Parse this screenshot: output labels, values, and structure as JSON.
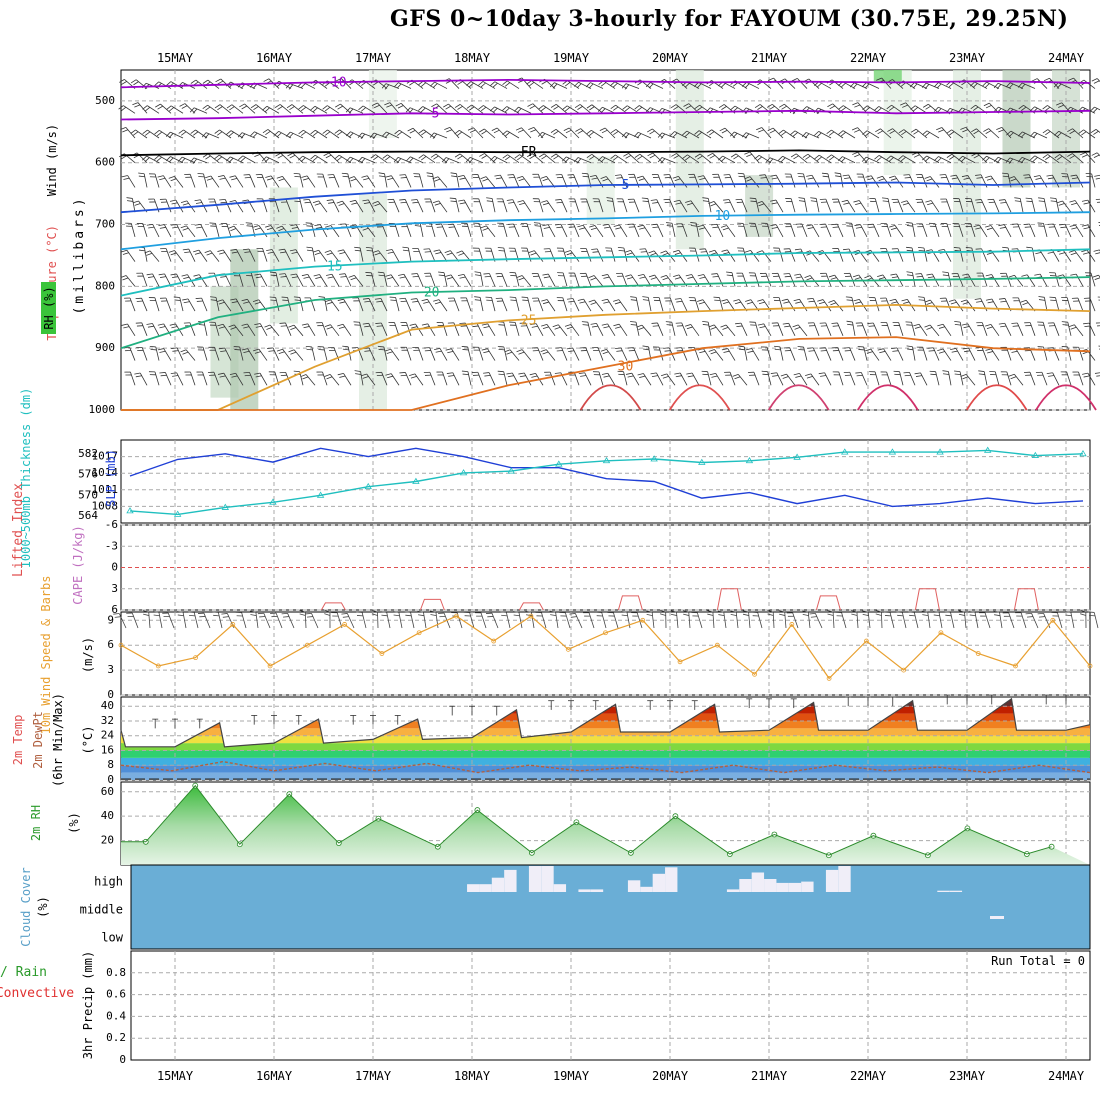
{
  "title": "GFS 0~10day 3-hourly for FAYOUM (30.75E, 29.25N)",
  "dates": [
    "15MAY",
    "16MAY",
    "17MAY",
    "18MAY",
    "19MAY",
    "20MAY",
    "21MAY",
    "22MAY",
    "23MAY",
    "24MAY"
  ],
  "chart_data": [
    {
      "type": "line",
      "panel": "upper-air",
      "ylabel_parts": [
        "Wind (m/s)",
        "Temperature (°C)",
        "RH (%)",
        "(millibars)"
      ],
      "y_ticks": [
        500,
        600,
        700,
        800,
        900,
        1000
      ],
      "ylim": [
        450,
        1000
      ],
      "contour_labels": [
        "-10",
        "-5",
        "FR",
        "5",
        "10",
        "15",
        "20",
        "25",
        "30"
      ],
      "series": [
        {
          "label": "-10",
          "p": [
            478,
            474,
            470,
            468,
            466,
            468,
            470,
            469,
            470,
            468,
            471
          ],
          "color": "#9900cc"
        },
        {
          "label": "-5",
          "p": [
            530,
            528,
            524,
            520,
            522,
            520,
            518,
            516,
            520,
            518,
            516
          ],
          "color": "#9900cc"
        },
        {
          "label": "FR",
          "p": [
            588,
            585,
            583,
            582,
            583,
            583,
            582,
            580,
            583,
            585,
            582
          ],
          "color": "#000000"
        },
        {
          "label": "5",
          "p": [
            680,
            668,
            655,
            645,
            640,
            636,
            635,
            634,
            632,
            636,
            632
          ],
          "color": "#1f4fd6"
        },
        {
          "label": "10",
          "p": [
            740,
            722,
            708,
            698,
            693,
            690,
            686,
            684,
            683,
            682,
            680
          ],
          "color": "#1f9fe0"
        },
        {
          "label": "15",
          "p": [
            815,
            782,
            768,
            760,
            756,
            753,
            750,
            746,
            745,
            744,
            740
          ],
          "color": "#1fbfbf"
        },
        {
          "label": "20",
          "p": [
            900,
            850,
            822,
            810,
            806,
            800,
            796,
            792,
            790,
            788,
            785
          ],
          "color": "#20b080"
        },
        {
          "label": "25",
          "p": [
            1000,
            1000,
            930,
            870,
            855,
            846,
            840,
            835,
            830,
            836,
            840
          ],
          "color": "#e0a030"
        },
        {
          "label": "30",
          "p": [
            1000,
            1000,
            1000,
            1000,
            960,
            930,
            900,
            885,
            882,
            900,
            905
          ],
          "color": "#e07020"
        }
      ]
    },
    {
      "type": "line",
      "panel": "slp-thickness",
      "ylabel_parts": [
        "SLP (mb)",
        "1000~500mb Thickness (dm)"
      ],
      "y_ticks_left": [
        564,
        570,
        576,
        582
      ],
      "y_ticks_right": [
        1008,
        1011,
        1014,
        1017
      ],
      "series": [
        {
          "name": "SLP",
          "unit": "mb",
          "values": [
            1013.5,
            1016.5,
            1017.5,
            1016.0,
            1018.5,
            1017.0,
            1018.5,
            1017.0,
            1015.0,
            1015.0,
            1013.0,
            1012.5,
            1009.5,
            1010.5,
            1008.5,
            1010.0,
            1008.0,
            1008.5,
            1009.5,
            1008.5,
            1009.0
          ]
        },
        {
          "name": "Thickness",
          "unit": "dm",
          "values": [
            565.5,
            564.5,
            566.5,
            568.0,
            570.0,
            572.5,
            574.0,
            576.5,
            577.0,
            579.0,
            580.0,
            580.5,
            579.5,
            580.0,
            581.0,
            582.5,
            582.5,
            582.5,
            583.0,
            581.5,
            582.0
          ]
        }
      ]
    },
    {
      "type": "line",
      "panel": "instability",
      "ylabel_parts": [
        "Lifted Index",
        "CAPE (J/kg)"
      ],
      "y_ticks": [
        "-6",
        "-3",
        "0",
        "3",
        "6"
      ],
      "ylim": [
        -6,
        6
      ],
      "series": [
        {
          "name": "Lifted Index",
          "day": [
            1.6,
            2.6,
            3.6,
            4.6,
            5.6,
            6.6,
            7.6,
            8.6
          ],
          "values": [
            5.0,
            4.5,
            5.0,
            4.0,
            3.0,
            4.0,
            3.0,
            3.0
          ]
        }
      ]
    },
    {
      "type": "line",
      "panel": "wind10m",
      "ylabel_parts": [
        "10m Wind Speed & Barbs",
        "(m/s)"
      ],
      "y_ticks": [
        0,
        3,
        6,
        9
      ],
      "ylim": [
        0,
        10
      ],
      "series": [
        {
          "name": "10m Wind Speed",
          "values": [
            6.0,
            3.5,
            4.5,
            8.5,
            3.5,
            6.0,
            8.5,
            5.0,
            7.5,
            9.5,
            6.5,
            9.5,
            5.5,
            7.5,
            9.0,
            4.0,
            6.0,
            2.5,
            8.5,
            2.0,
            6.5,
            3.0,
            7.5,
            5.0,
            3.5,
            9.0,
            3.5
          ]
        }
      ]
    },
    {
      "type": "area",
      "panel": "temp2m",
      "ylabel_parts": [
        "2m Temp",
        "2m DewPt",
        "(6hr Min/Max)",
        "(°C)"
      ],
      "y_ticks": [
        0,
        8,
        16,
        24,
        32,
        40
      ],
      "ylim": [
        0,
        45
      ],
      "series": [
        {
          "name": "2m Temp Max",
          "values": [
            31,
            33,
            33,
            38,
            41,
            41,
            42,
            43,
            44,
            44
          ]
        },
        {
          "name": "2m Temp Min",
          "values": [
            18,
            20,
            22,
            23,
            26,
            26,
            27,
            27,
            27,
            27
          ]
        },
        {
          "name": "2m DewPt",
          "values": [
            8,
            5,
            10,
            5,
            9,
            5,
            9,
            4,
            8,
            5,
            7,
            4,
            8,
            4,
            8,
            5,
            7,
            4,
            8,
            4
          ]
        }
      ]
    },
    {
      "type": "area",
      "panel": "rh2m",
      "ylabel_parts": [
        "2m RH",
        "(%)"
      ],
      "y_ticks": [
        20,
        40,
        60
      ],
      "ylim": [
        0,
        68
      ],
      "series": [
        {
          "name": "2m RH",
          "day": [
            0.15,
            0.65,
            1.1,
            1.6,
            2.1,
            2.5,
            3.1,
            3.5,
            4.05,
            4.5,
            5.05,
            5.5,
            6.05,
            6.5,
            7.05,
            7.5,
            8.05,
            8.45,
            9.05,
            9.3
          ],
          "values": [
            19,
            65,
            17,
            58,
            18,
            38,
            15,
            45,
            10,
            35,
            10,
            40,
            9,
            25,
            8,
            24,
            8,
            30,
            9,
            15
          ]
        }
      ]
    },
    {
      "type": "bar",
      "panel": "cloud",
      "ylabel_parts": [
        "Cloud Cover",
        "(%)"
      ],
      "y_ticks": [
        "high",
        "middle",
        "low"
      ],
      "series": [
        {
          "name": "high cloud",
          "start_day": 3.45,
          "step": 0.125,
          "values": [
            30,
            30,
            55,
            85,
            0,
            100,
            100,
            30,
            0,
            10,
            10,
            0,
            0,
            45,
            20,
            70,
            95,
            0,
            0,
            0,
            0,
            10,
            50,
            75,
            50,
            35,
            35,
            40,
            0,
            85,
            100,
            0,
            0,
            0,
            0,
            0,
            0,
            0,
            5,
            5
          ]
        }
      ]
    },
    {
      "type": "bar",
      "panel": "precip",
      "ylabel_parts": [
        "Total / Rain",
        "Convective",
        "3hr Precip (mm)"
      ],
      "y_ticks": [
        "0",
        "0.2",
        "0.4",
        "0.6",
        "0.8"
      ],
      "ylim": [
        0,
        1
      ],
      "annotation": "Run Total = 0",
      "values": []
    }
  ]
}
